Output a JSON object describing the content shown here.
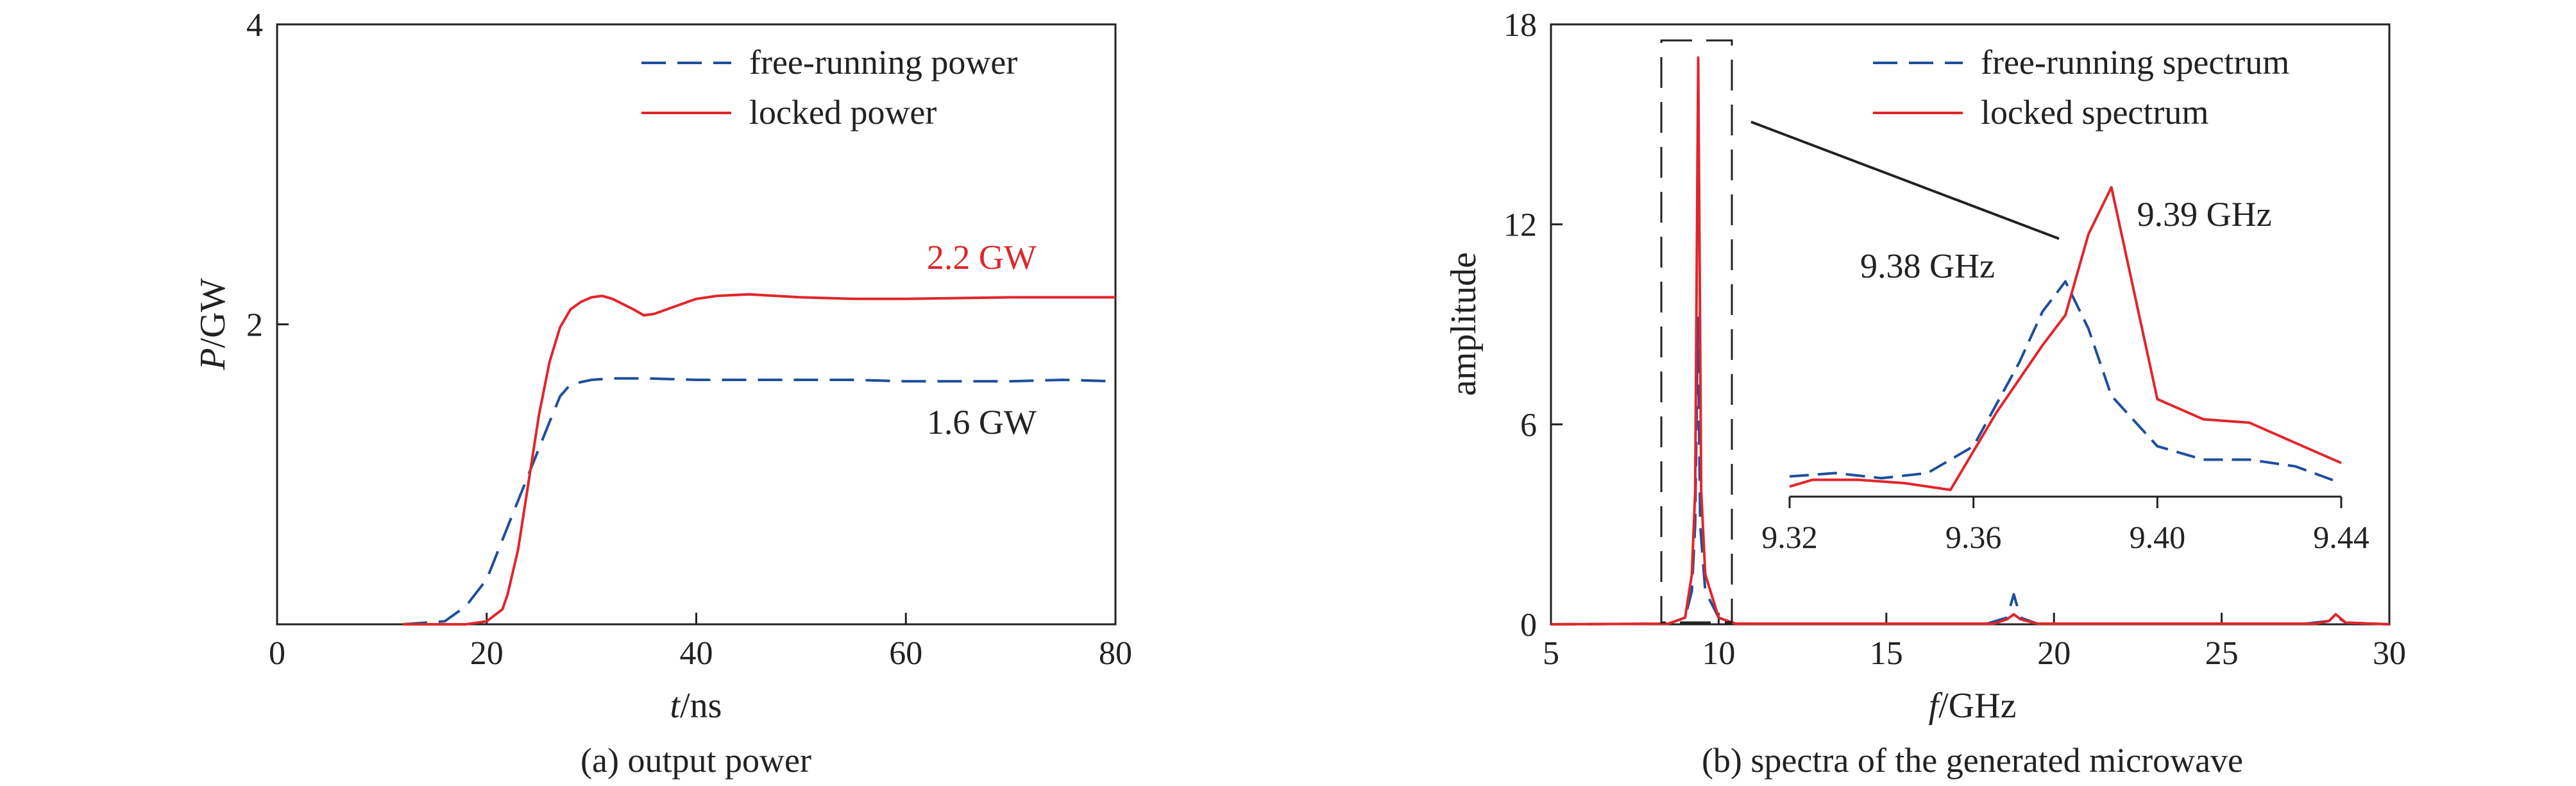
{
  "colors": {
    "free": "#1f4e9c",
    "locked": "#e0262b",
    "axis": "#222222"
  },
  "chart_data": [
    {
      "type": "line",
      "caption": "(a) output power",
      "xlabel_italic": "t",
      "xlabel_rest": "/ns",
      "ylabel_italic": "P",
      "ylabel_rest": "/GW",
      "xlim": [
        0,
        80
      ],
      "ylim": [
        0,
        4
      ],
      "x_ticks": [
        "0",
        "20",
        "40",
        "60",
        "80"
      ],
      "y_ticks": [
        "2",
        "4"
      ],
      "legend_position": "top-right",
      "series": [
        {
          "name": "free-running power",
          "style": "dashed",
          "x": [
            12,
            16,
            18,
            20,
            22,
            24,
            26,
            27,
            28,
            30,
            32,
            35,
            40,
            45,
            50,
            55,
            60,
            65,
            70,
            75,
            80
          ],
          "y": [
            0,
            0.02,
            0.12,
            0.3,
            0.65,
            1.0,
            1.35,
            1.52,
            1.6,
            1.63,
            1.64,
            1.64,
            1.63,
            1.63,
            1.63,
            1.63,
            1.62,
            1.62,
            1.62,
            1.63,
            1.62
          ]
        },
        {
          "name": "locked power",
          "style": "solid",
          "x": [
            12,
            18,
            20,
            21.5,
            22,
            23,
            24,
            25,
            26,
            27,
            28,
            29,
            30,
            31,
            32,
            34,
            35,
            36,
            38,
            40,
            42,
            45,
            50,
            55,
            60,
            70,
            80
          ],
          "y": [
            0,
            0,
            0.02,
            0.1,
            0.2,
            0.5,
            0.95,
            1.4,
            1.75,
            1.98,
            2.1,
            2.15,
            2.18,
            2.19,
            2.17,
            2.1,
            2.06,
            2.07,
            2.12,
            2.17,
            2.19,
            2.2,
            2.18,
            2.17,
            2.17,
            2.18,
            2.18
          ]
        }
      ],
      "annotations": [
        {
          "text": "2.2 GW",
          "series": "locked",
          "x": 62,
          "y": 2.37
        },
        {
          "text": "1.6 GW",
          "series": "free",
          "x": 62,
          "y": 1.27
        }
      ]
    },
    {
      "type": "line",
      "caption": "(b) spectra of the generated microwave",
      "xlabel_italic": "f",
      "xlabel_rest": "/GHz",
      "ylabel": "amplitude",
      "xlim": [
        5,
        30
      ],
      "ylim": [
        0,
        18
      ],
      "x_ticks": [
        "5",
        "10",
        "15",
        "20",
        "25",
        "30"
      ],
      "y_ticks": [
        "0",
        "6",
        "12",
        "18"
      ],
      "legend_position": "top-right",
      "series": [
        {
          "name": "free-running spectrum",
          "style": "dashed",
          "x": [
            5,
            8.5,
            9.0,
            9.2,
            9.3,
            9.38,
            9.45,
            9.6,
            10.0,
            10.5,
            18.0,
            18.6,
            18.8,
            19.0,
            19.5,
            27.5,
            28.2,
            28.4,
            28.7,
            30
          ],
          "y": [
            0,
            0.02,
            0.2,
            1.0,
            3.0,
            9.2,
            3.0,
            1.0,
            0.2,
            0.02,
            0.02,
            0.2,
            0.9,
            0.2,
            0.02,
            0.02,
            0.1,
            0.25,
            0.05,
            0
          ]
        },
        {
          "name": "locked spectrum",
          "style": "solid",
          "x": [
            5,
            8.5,
            9.0,
            9.2,
            9.3,
            9.39,
            9.48,
            9.6,
            10.0,
            10.5,
            18.2,
            18.6,
            18.8,
            19.0,
            19.5,
            27.8,
            28.2,
            28.4,
            28.7,
            30
          ],
          "y": [
            0,
            0.02,
            0.2,
            1.5,
            4.0,
            17.0,
            4.0,
            1.5,
            0.2,
            0.02,
            0.02,
            0.15,
            0.3,
            0.15,
            0.02,
            0.02,
            0.1,
            0.3,
            0.05,
            0
          ]
        }
      ],
      "inset": {
        "xlim": [
          9.32,
          9.44
        ],
        "x_ticks": [
          "9.32",
          "9.36",
          "9.40",
          "9.44"
        ],
        "ylim": [
          0,
          10
        ],
        "free": {
          "x": [
            9.32,
            9.33,
            9.34,
            9.35,
            9.36,
            9.37,
            9.375,
            9.38,
            9.385,
            9.39,
            9.4,
            9.41,
            9.42,
            9.43,
            9.44
          ],
          "y": [
            0.6,
            0.7,
            0.55,
            0.7,
            1.5,
            4.0,
            5.5,
            6.4,
            5.0,
            3.0,
            1.5,
            1.1,
            1.1,
            0.9,
            0.4
          ]
        },
        "locked": {
          "x": [
            9.32,
            9.325,
            9.335,
            9.345,
            9.355,
            9.365,
            9.375,
            9.38,
            9.385,
            9.39,
            9.4,
            9.41,
            9.42,
            9.43,
            9.44
          ],
          "y": [
            0.3,
            0.5,
            0.5,
            0.4,
            0.2,
            2.5,
            4.5,
            5.4,
            7.8,
            9.2,
            2.9,
            2.3,
            2.2,
            1.6,
            1.0
          ]
        },
        "annotations": [
          {
            "text": "9.39 GHz",
            "series": "locked"
          },
          {
            "text": "9.38 GHz",
            "series": "free"
          }
        ]
      }
    }
  ]
}
